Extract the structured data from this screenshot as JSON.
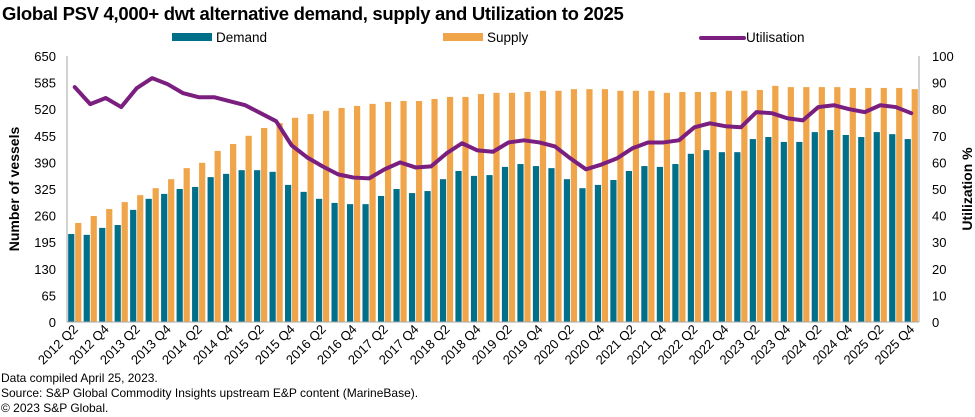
{
  "chart_data": {
    "type": "bar+line",
    "title": "Global PSV 4,000+ dwt alternative demand, supply and Utilization to 2025",
    "ylabel": "Number of vessels",
    "y2label": "Utilization %",
    "ylim": [
      0,
      650
    ],
    "yticks": [
      "0",
      "65",
      "130",
      "195",
      "260",
      "325",
      "390",
      "455",
      "520",
      "585",
      "650"
    ],
    "y2lim": [
      0,
      100
    ],
    "y2ticks": [
      "0",
      "10",
      "20",
      "30",
      "40",
      "50",
      "60",
      "70",
      "80",
      "90",
      "100"
    ],
    "grid": false,
    "legend_position": "top",
    "categories": [
      "2012 Q2",
      "2012 Q3",
      "2012 Q4",
      "2013 Q1",
      "2013 Q2",
      "2013 Q3",
      "2013 Q4",
      "2014 Q1",
      "2014 Q2",
      "2014 Q3",
      "2014 Q4",
      "2015 Q1",
      "2015 Q2",
      "2015 Q3",
      "2015 Q4",
      "2016 Q1",
      "2016 Q2",
      "2016 Q3",
      "2016 Q4",
      "2017 Q1",
      "2017 Q2",
      "2017 Q3",
      "2017 Q4",
      "2018 Q1",
      "2018 Q2",
      "2018 Q3",
      "2018 Q4",
      "2019 Q1",
      "2019 Q2",
      "2019 Q3",
      "2019 Q4",
      "2020 Q1",
      "2020 Q2",
      "2020 Q3",
      "2020 Q4",
      "2021 Q1",
      "2021 Q2",
      "2021 Q3",
      "2021 Q4",
      "2022 Q1",
      "2022 Q2",
      "2022 Q3",
      "2022 Q4",
      "2023 Q1",
      "2023 Q2",
      "2023 Q3",
      "2023 Q4",
      "2024 Q1",
      "2024 Q2",
      "2024 Q3",
      "2024 Q4",
      "2025 Q1",
      "2025 Q2",
      "2025 Q3",
      "2025 Q4"
    ],
    "xtick_labels": [
      "2012 Q2",
      "2012 Q4",
      "2013 Q2",
      "2013 Q4",
      "2014 Q2",
      "2014 Q4",
      "2015 Q2",
      "2015 Q4",
      "2016 Q2",
      "2016 Q4",
      "2017 Q2",
      "2017 Q4",
      "2018 Q2",
      "2018 Q4",
      "2019 Q2",
      "2019 Q4",
      "2020 Q2",
      "2020 Q4",
      "2021 Q2",
      "2021 Q4",
      "2022 Q2",
      "2022 Q4",
      "2023 Q2",
      "2023 Q4",
      "2024 Q2",
      "2024 Q4",
      "2025 Q2",
      "2025 Q4"
    ],
    "series": [
      {
        "name": "Demand",
        "type": "bar",
        "axis": "left",
        "color": "#006F8A",
        "values": [
          215,
          213,
          230,
          237,
          274,
          301,
          313,
          325,
          330,
          354,
          362,
          371,
          371,
          367,
          335,
          318,
          301,
          291,
          288,
          288,
          308,
          325,
          315,
          320,
          349,
          369,
          357,
          359,
          379,
          386,
          381,
          376,
          349,
          327,
          335,
          347,
          369,
          381,
          379,
          386,
          411,
          420,
          415,
          415,
          447,
          452,
          440,
          440,
          464,
          469,
          457,
          452,
          464,
          459,
          447
        ]
      },
      {
        "name": "Supply",
        "type": "bar",
        "axis": "left",
        "color": "#F0A54A",
        "values": [
          242,
          259,
          276,
          293,
          310,
          327,
          349,
          376,
          389,
          418,
          435,
          455,
          474,
          486,
          499,
          508,
          516,
          523,
          528,
          533,
          538,
          540,
          540,
          545,
          550,
          550,
          557,
          560,
          560,
          562,
          565,
          565,
          569,
          569,
          569,
          565,
          565,
          565,
          560,
          562,
          562,
          562,
          565,
          565,
          567,
          577,
          574,
          574,
          574,
          574,
          572,
          572,
          572,
          572,
          569
        ]
      },
      {
        "name": "Utilisation",
        "type": "line",
        "axis": "right",
        "color": "#7A1F7F",
        "values": [
          88.3,
          81.9,
          84.2,
          80.8,
          87.9,
          91.7,
          89.4,
          86.0,
          84.5,
          84.5,
          83.0,
          81.5,
          78.5,
          75.5,
          66.4,
          61.9,
          58.5,
          55.5,
          54.3,
          54.0,
          57.4,
          60.0,
          58.1,
          58.5,
          63.4,
          67.2,
          64.5,
          64.0,
          67.5,
          68.3,
          67.5,
          66.0,
          61.5,
          57.4,
          59.2,
          61.5,
          65.3,
          67.5,
          67.5,
          68.3,
          73.2,
          74.7,
          73.6,
          73.2,
          78.9,
          78.5,
          76.6,
          75.8,
          80.8,
          81.5,
          80.0,
          78.9,
          81.5,
          80.8,
          78.5
        ]
      }
    ]
  },
  "footnotes": [
    "Data compiled April 25, 2023.",
    "Source: S&P Global Commodity Insights upstream E&P content (MarineBase).",
    "© 2023 S&P Global."
  ]
}
